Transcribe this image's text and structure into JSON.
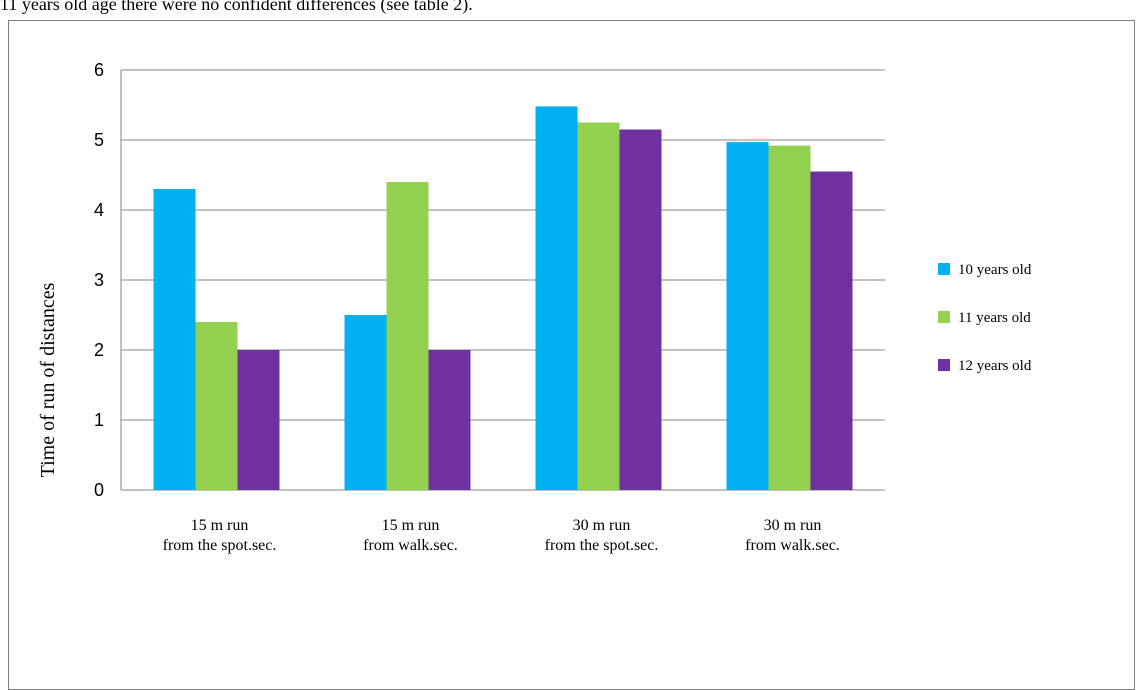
{
  "header_text": "11 years old age there were no confident differences (see table 2).",
  "chart_data": {
    "type": "bar",
    "categories": [
      [
        "15 m run",
        "from the spot.sec."
      ],
      [
        "15 m run",
        "from walk.sec."
      ],
      [
        "30 m run",
        "from the spot.sec."
      ],
      [
        "30 m run",
        "from walk.sec."
      ]
    ],
    "series": [
      {
        "name": "10 years old",
        "color": "#00b0f0",
        "values": [
          4.3,
          2.5,
          5.48,
          4.97
        ]
      },
      {
        "name": "11 years old",
        "color": "#92d050",
        "values": [
          2.4,
          4.4,
          5.25,
          4.92
        ]
      },
      {
        "name": "12 years old",
        "color": "#7030a0",
        "values": [
          2.0,
          2.0,
          5.15,
          4.55
        ]
      }
    ],
    "yticks": [
      "0",
      "1",
      "2",
      "3",
      "4",
      "5",
      "6"
    ],
    "ylim": [
      0,
      6
    ],
    "ylabel": "Time of run of distances",
    "xlabel": "",
    "title": "",
    "grid": true,
    "legend_position": "right"
  }
}
